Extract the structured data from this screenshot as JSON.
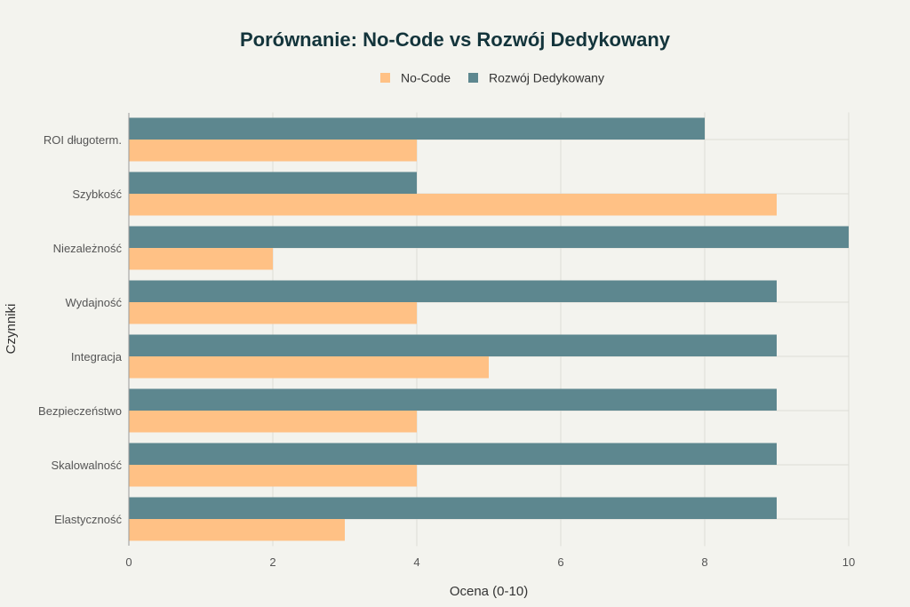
{
  "chart_data": {
    "type": "bar",
    "orientation": "horizontal",
    "title": "Porównanie: No-Code vs Rozwój Dedykowany",
    "xlabel": "Ocena (0-10)",
    "ylabel": "Czynniki",
    "xlim": [
      0,
      10
    ],
    "xticks": [
      "0",
      "2",
      "4",
      "6",
      "8",
      "10"
    ],
    "grid": true,
    "legend_placement": "top-center",
    "categories": [
      "ROI długoterm.",
      "Szybkość",
      "Niezależność",
      "Wydajność",
      "Integracja",
      "Bezpieczeństwo",
      "Skalowalność",
      "Elastyczność"
    ],
    "series": [
      {
        "name": "No-Code",
        "color": "#FFC185",
        "values": [
          4,
          9,
          2,
          4,
          5,
          4,
          4,
          3
        ]
      },
      {
        "name": "Rozwój Dedykowany",
        "color": "#5D878F",
        "values": [
          8,
          4,
          10,
          9,
          9,
          9,
          9,
          9
        ]
      }
    ]
  }
}
